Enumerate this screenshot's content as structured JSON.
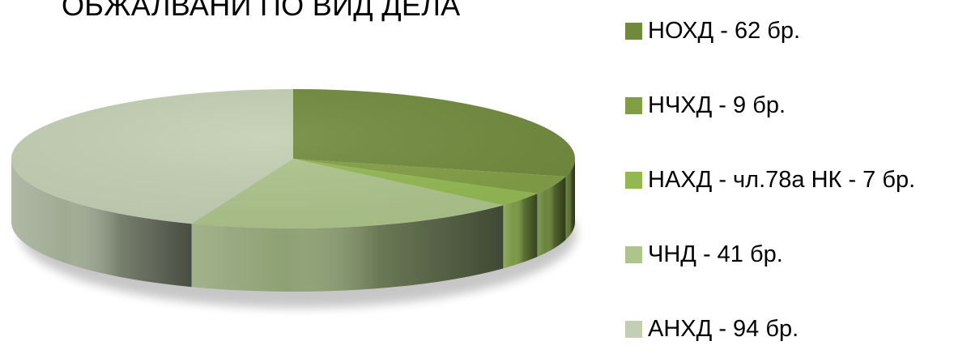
{
  "chart_data": {
    "type": "pie",
    "title": "ОБЖАЛВАНИ ПО ВИД ДЕЛА",
    "legend_position": "right",
    "three_d": true,
    "slices": [
      {
        "label": "НОХД - 62 бр.",
        "value": 62,
        "color": "#708a3c"
      },
      {
        "label": "НЧХД - 9 бр.",
        "value": 9,
        "color": "#819e45"
      },
      {
        "label": "НАХД - чл.78а НК - 7 бр.",
        "value": 7,
        "color": "#93b852"
      },
      {
        "label": "ЧНД - 41 бр.",
        "value": 41,
        "color": "#adc48c"
      },
      {
        "label": "АНХД - 94 бр.",
        "value": 94,
        "color": "#c3cfb3"
      }
    ]
  }
}
